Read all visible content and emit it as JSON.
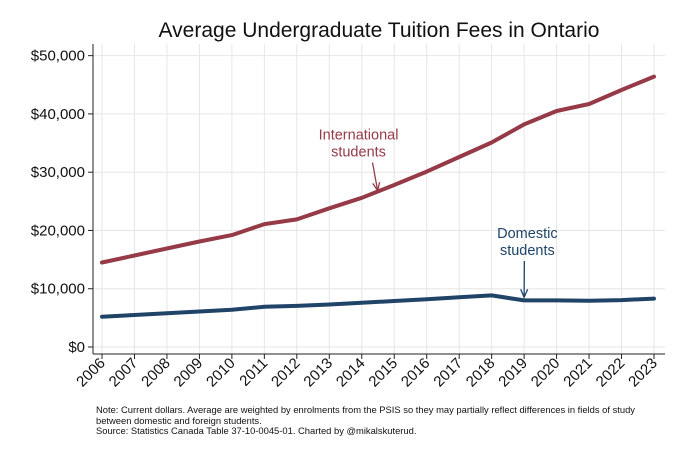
{
  "chart_data": {
    "type": "line",
    "title": "Average Undergraduate Tuition Fees in Ontario",
    "xlabel": "",
    "ylabel": "",
    "x": [
      2006,
      2007,
      2008,
      2009,
      2010,
      2011,
      2012,
      2013,
      2014,
      2015,
      2016,
      2017,
      2018,
      2019,
      2020,
      2021,
      2022,
      2023
    ],
    "x_tick_labels": [
      "2006",
      "2007",
      "2008",
      "2009",
      "2010",
      "2011",
      "2012",
      "2013",
      "2014",
      "2015",
      "2016",
      "2017",
      "2018",
      "2019",
      "2020",
      "2021",
      "2022",
      "2023"
    ],
    "ylim": [
      0,
      52000
    ],
    "y_ticks": [
      0,
      10000,
      20000,
      30000,
      40000,
      50000
    ],
    "y_tick_labels": [
      "$0",
      "$10,000",
      "$20,000",
      "$30,000",
      "$40,000",
      "$50,000"
    ],
    "grid": true,
    "series": [
      {
        "name": "International students",
        "color": "#953a46",
        "label_lines": [
          "International",
          "students"
        ],
        "values": [
          14500,
          15700,
          16900,
          18100,
          19200,
          21100,
          21900,
          23800,
          25600,
          27800,
          30100,
          32600,
          35100,
          38200,
          40500,
          41700,
          44100,
          46400
        ]
      },
      {
        "name": "Domestic students",
        "color": "#1f4468",
        "label_lines": [
          "Domestic",
          "students"
        ],
        "values": [
          5200,
          5500,
          5800,
          6100,
          6400,
          6900,
          7050,
          7300,
          7600,
          7900,
          8200,
          8550,
          8850,
          8000,
          8000,
          7950,
          8050,
          8300
        ]
      }
    ],
    "annotations": [
      {
        "series": 0,
        "x": 2014.5,
        "y": 26500,
        "label_x": 2013.9,
        "label_y": 35600
      },
      {
        "series": 1,
        "x": 2019,
        "y": 8200,
        "label_x": 2019.1,
        "label_y": 18700
      }
    ],
    "notes": [
      "Note: Current dollars. Average are weighted by enrolments from the PSIS so they may partially reflect differences in fields of study",
      "between domestic and foreign students.",
      "Source: Statistics Canada Table 37-10-0045-01. Charted by @mikalskuterud."
    ],
    "background": "#ffffff",
    "grid_color": "#e6e6e6"
  }
}
